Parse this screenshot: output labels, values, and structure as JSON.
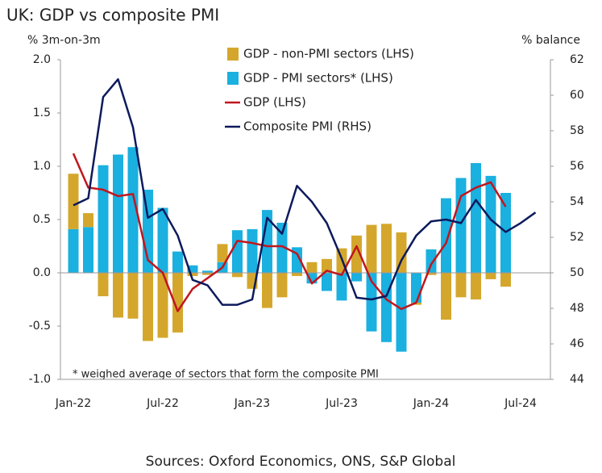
{
  "chart_data": {
    "type": "combo",
    "title": "UK: GDP vs composite PMI",
    "ylabel": "% 3m-on-3m",
    "y2label": "% balance",
    "annotation": "* weighed average of sectors that form the composite PMI",
    "source": "Sources: Oxford Economics, ONS, S&P Global",
    "categories": [
      "Jan-22",
      null,
      null,
      null,
      null,
      null,
      "Jul-22",
      null,
      null,
      null,
      null,
      null,
      "Jan-23",
      null,
      null,
      null,
      null,
      null,
      "Jul-23",
      null,
      null,
      null,
      null,
      null,
      "Jan-24",
      null,
      null,
      null,
      null,
      null,
      "Jul-24",
      null
    ],
    "series": [
      {
        "name": "GDP - non-PMI sectors (LHS)",
        "type": "bar",
        "color": "#d4a72c",
        "values": [
          0.52,
          0.13,
          -0.22,
          -0.42,
          -0.43,
          -0.64,
          -0.61,
          -0.56,
          -0.03,
          -0.02,
          0.17,
          -0.04,
          -0.15,
          -0.33,
          -0.23,
          -0.03,
          0.1,
          0.13,
          0.23,
          0.35,
          0.45,
          0.46,
          0.38,
          -0.02,
          -0.02,
          -0.44,
          -0.23,
          -0.25,
          -0.06,
          -0.13,
          null,
          null
        ]
      },
      {
        "name": "GDP - PMI sectors* (LHS)",
        "type": "bar",
        "color": "#1ab0e0",
        "values": [
          0.41,
          0.43,
          1.01,
          1.11,
          1.18,
          0.78,
          0.61,
          0.2,
          0.07,
          0.02,
          0.1,
          0.4,
          0.41,
          0.59,
          0.47,
          0.24,
          -0.1,
          -0.17,
          -0.26,
          -0.08,
          -0.55,
          -0.65,
          -0.74,
          -0.28,
          0.22,
          0.7,
          0.89,
          1.03,
          0.91,
          0.75,
          null,
          null
        ]
      },
      {
        "name": "GDP (LHS)",
        "type": "line",
        "color": "#c0161e",
        "values": [
          1.12,
          0.8,
          0.78,
          0.72,
          0.74,
          0.12,
          0.0,
          -0.36,
          -0.15,
          -0.05,
          0.05,
          0.3,
          0.28,
          0.25,
          0.25,
          0.18,
          -0.1,
          0.02,
          -0.02,
          0.25,
          -0.08,
          -0.25,
          -0.34,
          -0.28,
          0.08,
          0.28,
          0.72,
          0.8,
          0.85,
          0.62,
          null,
          null
        ]
      },
      {
        "name": "Composite PMI (RHS)",
        "type": "line",
        "axis": "y2",
        "color": "#0d1a5c",
        "values": [
          53.8,
          54.2,
          59.9,
          60.9,
          58.2,
          53.1,
          53.6,
          52.1,
          49.6,
          49.3,
          48.2,
          48.2,
          48.5,
          53.1,
          52.2,
          54.9,
          54.0,
          52.8,
          50.8,
          48.6,
          48.5,
          48.7,
          50.7,
          52.1,
          52.9,
          53.0,
          52.8,
          54.1,
          53.0,
          52.3,
          52.8,
          53.4
        ]
      }
    ],
    "ylim": [
      -1,
      2
    ],
    "yticks": [
      {
        "value": -1,
        "label": "-1.0"
      },
      -0.5,
      {
        "value": 0,
        "label": "0.0"
      },
      0.5,
      {
        "value": 1,
        "label": "1.0"
      },
      1.5,
      {
        "value": 2,
        "label": "2.0"
      }
    ],
    "y2lim": [
      44,
      62
    ],
    "y2ticks": [
      44,
      46,
      48,
      50,
      52,
      54,
      56,
      58,
      60,
      62
    ],
    "grid": false
  }
}
